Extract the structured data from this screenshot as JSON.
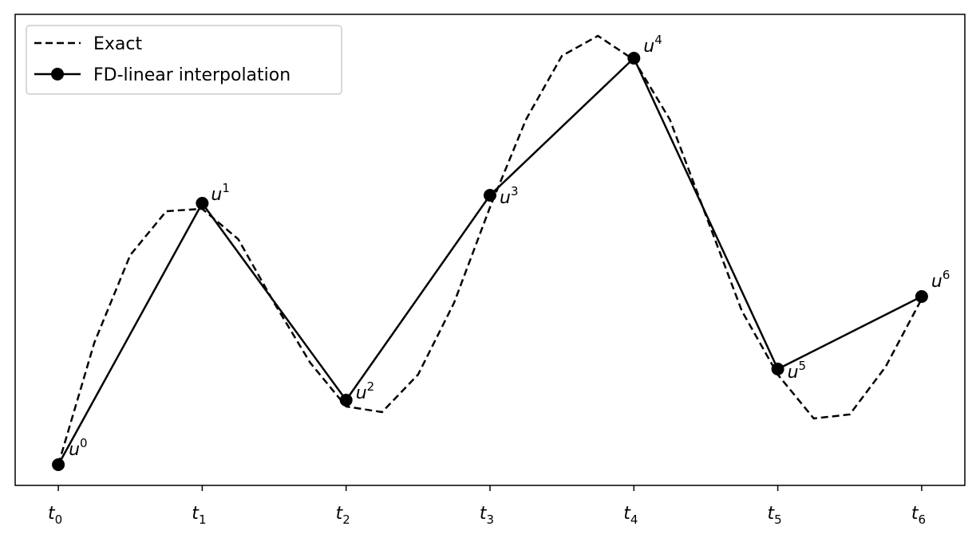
{
  "chart_data": {
    "type": "line",
    "series": [
      {
        "name": "Exact",
        "color": "#000000",
        "dash": true,
        "marker": false,
        "x": [
          0,
          0.25,
          0.5,
          0.75,
          1,
          1.25,
          1.5,
          1.75,
          2,
          2.25,
          2.5,
          2.75,
          3,
          3.25,
          3.5,
          3.75,
          4,
          4.25,
          4.5,
          4.75,
          5,
          5.25,
          5.5,
          5.75,
          6
        ],
        "values": [
          0,
          1.53,
          2.63,
          3.18,
          3.21,
          2.83,
          2.03,
          1.28,
          0.73,
          0.66,
          1.13,
          2.03,
          3.23,
          4.33,
          5.13,
          5.38,
          5.08,
          4.33,
          3.13,
          1.93,
          1.13,
          0.58,
          0.63,
          1.23,
          2.08
        ]
      },
      {
        "name": "FD-linear interpolation",
        "color": "#000000",
        "dash": false,
        "marker": true,
        "x": [
          0,
          1,
          2,
          3,
          4,
          5,
          6
        ],
        "values": [
          0,
          3.28,
          0.81,
          3.38,
          5.1,
          1.2,
          2.11
        ],
        "point_labels": [
          {
            "text": "u",
            "sup": "0"
          },
          {
            "text": "u",
            "sup": "1"
          },
          {
            "text": "u",
            "sup": "2"
          },
          {
            "text": "u",
            "sup": "3"
          },
          {
            "text": "u",
            "sup": "4"
          },
          {
            "text": "u",
            "sup": "5"
          },
          {
            "text": "u",
            "sup": "6"
          }
        ]
      }
    ],
    "xlim": [
      -0.3,
      6.3
    ],
    "xticks": [
      {
        "value": 0,
        "label": "t",
        "sub": "0"
      },
      {
        "value": 1,
        "label": "t",
        "sub": "1"
      },
      {
        "value": 2,
        "label": "t",
        "sub": "2"
      },
      {
        "value": 3,
        "label": "t",
        "sub": "3"
      },
      {
        "value": 4,
        "label": "t",
        "sub": "4"
      },
      {
        "value": 5,
        "label": "t",
        "sub": "5"
      },
      {
        "value": 6,
        "label": "t",
        "sub": "6"
      }
    ],
    "ylim": [
      -0.26,
      5.65
    ],
    "legend": "upper left"
  }
}
